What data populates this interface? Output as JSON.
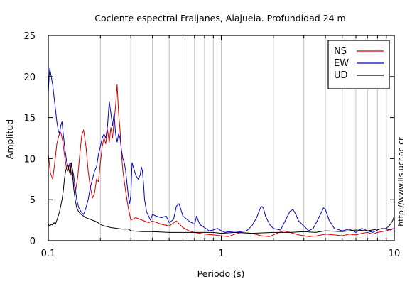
{
  "chart_data": {
    "type": "line",
    "title": "Cociente espectral Fraijanes, Alajuela. Profundidad 24 m",
    "xlabel": "Periodo (s)",
    "ylabel": "Amplitud",
    "xscale": "log",
    "xlim": [
      0.1,
      10
    ],
    "ylim": [
      0,
      25
    ],
    "x_ticks": [
      {
        "value": 0.1,
        "label": "0.1"
      },
      {
        "value": 1,
        "label": "1"
      },
      {
        "value": 10,
        "label": "10"
      }
    ],
    "y_ticks": [
      {
        "value": 0,
        "label": "0"
      },
      {
        "value": 5,
        "label": "5"
      },
      {
        "value": 10,
        "label": "10"
      },
      {
        "value": 15,
        "label": "15"
      },
      {
        "value": 20,
        "label": "20"
      },
      {
        "value": 25,
        "label": "25"
      }
    ],
    "grid": "vertical log decades",
    "legend_position": "top-right",
    "watermark": "http://www.lis.ucr.ac.cr",
    "series": [
      {
        "name": "NS",
        "color": "#d40000",
        "points": [
          [
            0.1,
            10.5
          ],
          [
            0.103,
            8.2
          ],
          [
            0.106,
            7.5
          ],
          [
            0.109,
            9.5
          ],
          [
            0.112,
            11.8
          ],
          [
            0.115,
            12.8
          ],
          [
            0.118,
            13.2
          ],
          [
            0.121,
            12.2
          ],
          [
            0.124,
            10.5
          ],
          [
            0.127,
            9.0
          ],
          [
            0.13,
            8.5
          ],
          [
            0.133,
            9.5
          ],
          [
            0.136,
            8.2
          ],
          [
            0.14,
            7.0
          ],
          [
            0.144,
            6.2
          ],
          [
            0.148,
            7.8
          ],
          [
            0.152,
            10.5
          ],
          [
            0.156,
            12.8
          ],
          [
            0.16,
            13.5
          ],
          [
            0.165,
            11.5
          ],
          [
            0.17,
            8.5
          ],
          [
            0.175,
            6.5
          ],
          [
            0.18,
            5.2
          ],
          [
            0.185,
            5.8
          ],
          [
            0.19,
            7.5
          ],
          [
            0.195,
            7.2
          ],
          [
            0.2,
            9.5
          ],
          [
            0.205,
            11.5
          ],
          [
            0.21,
            12.5
          ],
          [
            0.215,
            11.8
          ],
          [
            0.22,
            13.5
          ],
          [
            0.225,
            12.0
          ],
          [
            0.23,
            13.8
          ],
          [
            0.235,
            12.5
          ],
          [
            0.24,
            14.5
          ],
          [
            0.245,
            16.5
          ],
          [
            0.25,
            19.0
          ],
          [
            0.255,
            15.5
          ],
          [
            0.26,
            13.5
          ],
          [
            0.265,
            10.5
          ],
          [
            0.27,
            8.5
          ],
          [
            0.28,
            6.0
          ],
          [
            0.29,
            4.0
          ],
          [
            0.3,
            2.5
          ],
          [
            0.32,
            2.8
          ],
          [
            0.35,
            2.5
          ],
          [
            0.38,
            2.2
          ],
          [
            0.4,
            2.4
          ],
          [
            0.45,
            2.0
          ],
          [
            0.5,
            1.8
          ],
          [
            0.55,
            2.4
          ],
          [
            0.6,
            1.6
          ],
          [
            0.65,
            1.2
          ],
          [
            0.7,
            1.0
          ],
          [
            0.75,
            0.9
          ],
          [
            0.8,
            0.8
          ],
          [
            0.9,
            0.7
          ],
          [
            1.0,
            0.6
          ],
          [
            1.1,
            0.5
          ],
          [
            1.2,
            0.8
          ],
          [
            1.3,
            1.0
          ],
          [
            1.5,
            0.9
          ],
          [
            1.7,
            0.6
          ],
          [
            1.9,
            0.5
          ],
          [
            2.1,
            0.9
          ],
          [
            2.3,
            1.2
          ],
          [
            2.5,
            1.0
          ],
          [
            2.8,
            0.7
          ],
          [
            3.2,
            0.5
          ],
          [
            3.6,
            0.6
          ],
          [
            4.0,
            0.8
          ],
          [
            4.5,
            0.7
          ],
          [
            5.0,
            0.6
          ],
          [
            5.5,
            0.8
          ],
          [
            6.0,
            0.7
          ],
          [
            6.5,
            0.9
          ],
          [
            7.0,
            1.0
          ],
          [
            7.5,
            0.8
          ],
          [
            8.0,
            1.0
          ],
          [
            8.5,
            1.1
          ],
          [
            9.0,
            1.2
          ],
          [
            9.5,
            1.4
          ],
          [
            10.0,
            1.5
          ]
        ]
      },
      {
        "name": "EW",
        "color": "#0000cc",
        "points": [
          [
            0.1,
            18.0
          ],
          [
            0.101,
            20.0
          ],
          [
            0.102,
            21.0
          ],
          [
            0.104,
            20.0
          ],
          [
            0.106,
            19.0
          ],
          [
            0.108,
            17.5
          ],
          [
            0.11,
            16.0
          ],
          [
            0.112,
            14.5
          ],
          [
            0.114,
            13.5
          ],
          [
            0.116,
            13.0
          ],
          [
            0.118,
            14.0
          ],
          [
            0.12,
            14.5
          ],
          [
            0.122,
            13.0
          ],
          [
            0.125,
            11.0
          ],
          [
            0.128,
            9.5
          ],
          [
            0.131,
            9.0
          ],
          [
            0.134,
            9.5
          ],
          [
            0.137,
            9.0
          ],
          [
            0.14,
            8.0
          ],
          [
            0.143,
            6.5
          ],
          [
            0.146,
            5.0
          ],
          [
            0.15,
            4.0
          ],
          [
            0.155,
            3.5
          ],
          [
            0.16,
            3.2
          ],
          [
            0.165,
            4.0
          ],
          [
            0.17,
            5.0
          ],
          [
            0.175,
            6.5
          ],
          [
            0.18,
            7.5
          ],
          [
            0.185,
            8.5
          ],
          [
            0.19,
            9.0
          ],
          [
            0.195,
            10.5
          ],
          [
            0.2,
            11.5
          ],
          [
            0.205,
            12.5
          ],
          [
            0.21,
            13.0
          ],
          [
            0.215,
            12.5
          ],
          [
            0.22,
            14.0
          ],
          [
            0.225,
            17.0
          ],
          [
            0.23,
            15.5
          ],
          [
            0.235,
            14.0
          ],
          [
            0.24,
            15.5
          ],
          [
            0.245,
            13.0
          ],
          [
            0.25,
            12.0
          ],
          [
            0.255,
            13.0
          ],
          [
            0.26,
            12.5
          ],
          [
            0.265,
            11.0
          ],
          [
            0.27,
            10.0
          ],
          [
            0.275,
            9.5
          ],
          [
            0.28,
            8.5
          ],
          [
            0.285,
            7.0
          ],
          [
            0.29,
            5.5
          ],
          [
            0.295,
            4.5
          ],
          [
            0.3,
            5.5
          ],
          [
            0.305,
            9.5
          ],
          [
            0.31,
            9.0
          ],
          [
            0.315,
            8.5
          ],
          [
            0.32,
            8.0
          ],
          [
            0.33,
            7.5
          ],
          [
            0.34,
            8.0
          ],
          [
            0.345,
            9.0
          ],
          [
            0.35,
            8.5
          ],
          [
            0.355,
            7.0
          ],
          [
            0.36,
            5.0
          ],
          [
            0.37,
            3.5
          ],
          [
            0.38,
            3.0
          ],
          [
            0.39,
            2.5
          ],
          [
            0.4,
            3.2
          ],
          [
            0.42,
            3.0
          ],
          [
            0.45,
            2.8
          ],
          [
            0.48,
            3.0
          ],
          [
            0.5,
            2.2
          ],
          [
            0.53,
            2.6
          ],
          [
            0.55,
            4.2
          ],
          [
            0.57,
            4.5
          ],
          [
            0.6,
            3.0
          ],
          [
            0.65,
            2.4
          ],
          [
            0.7,
            2.0
          ],
          [
            0.72,
            3.0
          ],
          [
            0.75,
            2.0
          ],
          [
            0.8,
            1.6
          ],
          [
            0.85,
            1.2
          ],
          [
            0.9,
            1.3
          ],
          [
            0.95,
            1.5
          ],
          [
            1.0,
            1.2
          ],
          [
            1.05,
            1.0
          ],
          [
            1.1,
            1.1
          ],
          [
            1.2,
            1.0
          ],
          [
            1.3,
            1.1
          ],
          [
            1.4,
            1.2
          ],
          [
            1.5,
            1.8
          ],
          [
            1.6,
            2.8
          ],
          [
            1.7,
            4.2
          ],
          [
            1.75,
            4.0
          ],
          [
            1.8,
            3.0
          ],
          [
            1.9,
            2.0
          ],
          [
            2.0,
            1.5
          ],
          [
            2.2,
            1.3
          ],
          [
            2.35,
            2.5
          ],
          [
            2.5,
            3.6
          ],
          [
            2.6,
            3.8
          ],
          [
            2.7,
            3.2
          ],
          [
            2.8,
            2.4
          ],
          [
            3.0,
            1.8
          ],
          [
            3.2,
            1.2
          ],
          [
            3.4,
            1.5
          ],
          [
            3.6,
            2.5
          ],
          [
            3.8,
            3.5
          ],
          [
            3.9,
            4.0
          ],
          [
            4.0,
            3.8
          ],
          [
            4.2,
            2.5
          ],
          [
            4.5,
            1.5
          ],
          [
            5.0,
            1.2
          ],
          [
            5.5,
            1.4
          ],
          [
            6.0,
            1.0
          ],
          [
            6.5,
            1.5
          ],
          [
            7.0,
            1.2
          ],
          [
            7.5,
            1.0
          ],
          [
            8.0,
            1.3
          ],
          [
            8.5,
            1.5
          ],
          [
            9.0,
            1.4
          ],
          [
            9.5,
            1.3
          ],
          [
            10.0,
            1.5
          ]
        ]
      },
      {
        "name": "UD",
        "color": "#000000",
        "points": [
          [
            0.1,
            2.0
          ],
          [
            0.102,
            1.8
          ],
          [
            0.104,
            2.0
          ],
          [
            0.106,
            1.9
          ],
          [
            0.108,
            2.2
          ],
          [
            0.11,
            2.0
          ],
          [
            0.112,
            2.5
          ],
          [
            0.114,
            3.0
          ],
          [
            0.116,
            3.5
          ],
          [
            0.118,
            4.2
          ],
          [
            0.12,
            5.0
          ],
          [
            0.122,
            6.0
          ],
          [
            0.124,
            7.5
          ],
          [
            0.126,
            8.5
          ],
          [
            0.128,
            9.0
          ],
          [
            0.13,
            9.2
          ],
          [
            0.132,
            8.5
          ],
          [
            0.134,
            8.0
          ],
          [
            0.136,
            9.5
          ],
          [
            0.138,
            8.5
          ],
          [
            0.14,
            6.5
          ],
          [
            0.143,
            5.0
          ],
          [
            0.146,
            4.0
          ],
          [
            0.15,
            3.5
          ],
          [
            0.155,
            3.2
          ],
          [
            0.16,
            3.0
          ],
          [
            0.165,
            2.8
          ],
          [
            0.17,
            2.7
          ],
          [
            0.18,
            2.5
          ],
          [
            0.19,
            2.3
          ],
          [
            0.2,
            2.0
          ],
          [
            0.21,
            1.8
          ],
          [
            0.22,
            1.7
          ],
          [
            0.23,
            1.6
          ],
          [
            0.25,
            1.5
          ],
          [
            0.27,
            1.4
          ],
          [
            0.29,
            1.4
          ],
          [
            0.3,
            1.2
          ],
          [
            0.35,
            1.1
          ],
          [
            0.4,
            1.1
          ],
          [
            0.5,
            1.0
          ],
          [
            0.6,
            1.0
          ],
          [
            0.7,
            1.0
          ],
          [
            0.8,
            1.0
          ],
          [
            0.9,
            1.0
          ],
          [
            1.0,
            0.9
          ],
          [
            1.2,
            1.0
          ],
          [
            1.5,
            0.9
          ],
          [
            2.0,
            1.0
          ],
          [
            2.5,
            1.0
          ],
          [
            3.0,
            1.1
          ],
          [
            3.5,
            1.0
          ],
          [
            4.0,
            1.2
          ],
          [
            5.0,
            1.1
          ],
          [
            6.0,
            1.3
          ],
          [
            7.0,
            1.2
          ],
          [
            8.0,
            1.4
          ],
          [
            9.0,
            1.5
          ],
          [
            9.5,
            2.0
          ],
          [
            9.8,
            2.5
          ],
          [
            10.0,
            3.0
          ]
        ]
      }
    ]
  }
}
